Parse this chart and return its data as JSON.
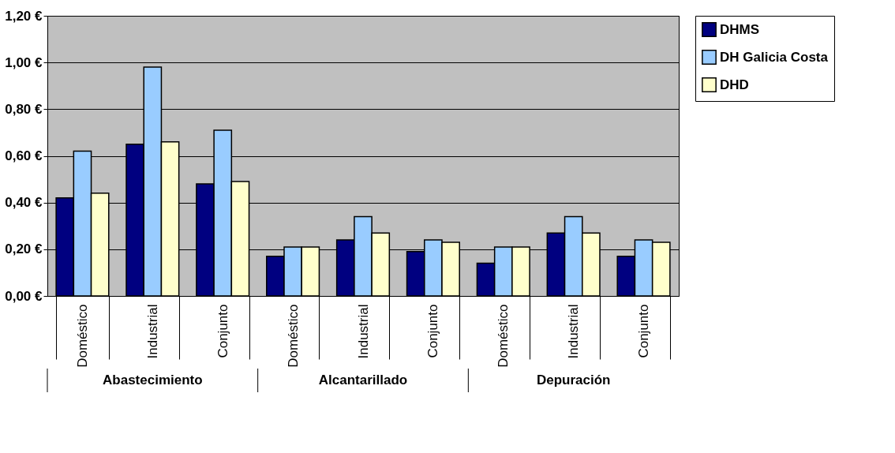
{
  "chart_data": {
    "type": "bar",
    "categories": [
      "Doméstico",
      "Industrial",
      "Conjunto",
      "Doméstico",
      "Industrial",
      "Conjunto",
      "Doméstico",
      "Industrial",
      "Conjunto"
    ],
    "annotations": [
      "Abastecimiento",
      "Alcantarillado",
      "Depuración"
    ],
    "series": [
      {
        "name": "DHMS",
        "color": "#000080",
        "values": [
          0.42,
          0.65,
          0.48,
          0.17,
          0.24,
          0.19,
          0.14,
          0.27,
          0.17
        ]
      },
      {
        "name": "DH Galicia Costa",
        "color": "#99ccff",
        "values": [
          0.62,
          0.98,
          0.71,
          0.21,
          0.34,
          0.24,
          0.21,
          0.34,
          0.24
        ]
      },
      {
        "name": "DHD",
        "color": "#ffffcc",
        "values": [
          0.44,
          0.66,
          0.49,
          0.21,
          0.27,
          0.23,
          0.21,
          0.27,
          0.23
        ]
      }
    ],
    "ylim": [
      0,
      1.2
    ],
    "yticks": [
      {
        "value": 0,
        "label": "0,00 €"
      },
      {
        "value": 0.2,
        "label": "0,20 €"
      },
      {
        "value": 0.4,
        "label": "0,40 €"
      },
      {
        "value": 0.6,
        "label": "0,60 €"
      },
      {
        "value": 0.8,
        "label": "0,80 €"
      },
      {
        "value": 1.0,
        "label": "1,00 €"
      },
      {
        "value": 1.2,
        "label": "1,20 €"
      }
    ],
    "grid": "y",
    "legend": "right"
  }
}
